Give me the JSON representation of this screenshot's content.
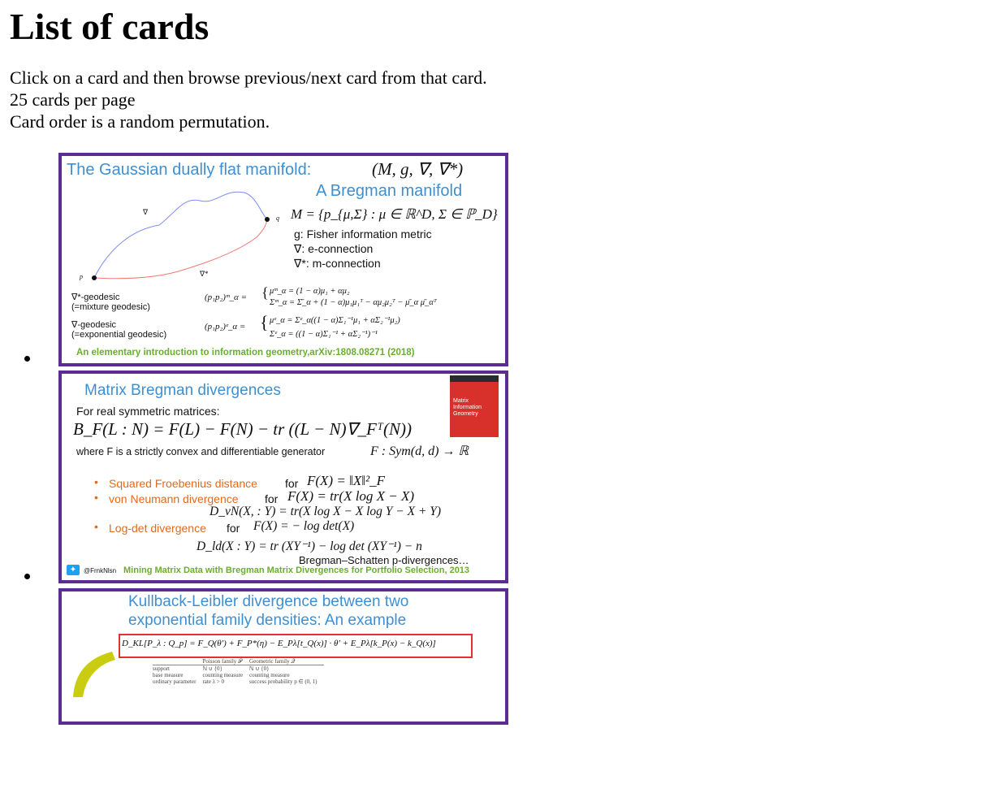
{
  "title": "List of cards",
  "intro": [
    "Click on a card and then browse previous/next card from that card.",
    "25 cards per page",
    "Card order is a random permutation."
  ],
  "cards": [
    {
      "title": "The Gaussian dually flat manifold:",
      "title_math": "(M, g, ∇, ∇*)",
      "subtitle": "A Bregman manifold",
      "manifold_def": "M = {p_{μ,Σ} : μ ∈ ℝ^D, Σ ∈ ℙ_D}",
      "items": [
        "g: Fisher information metric",
        "∇: e-connection",
        "∇*: m-connection"
      ],
      "fig_labels": {
        "nabla": "∇",
        "nabla_star": "∇*",
        "p": "p",
        "q": "q"
      },
      "geodesic_m": [
        "∇*-geodesic",
        "(=mixture geodesic)"
      ],
      "geodesic_e": [
        "∇-geodesic",
        "(=exponential geodesic)"
      ],
      "eq_m_lhs": "(p₁p₂)ᵐ_α =",
      "eq_m_1": "μᵐ_α = (1 − α)μ₁ + αμ₂",
      "eq_m_2": "Σᵐ_α = Σ̄_α + (1 − α)μ₁μ₁ᵀ − αμ₂μ₂ᵀ − μ̄_α μ̄_αᵀ",
      "eq_e_lhs": "(p₁p₂)ᵉ_α =",
      "eq_e_1": "μᵉ_α = Σᵉ_α((1 − α)Σ₁⁻¹μ₁ + αΣ₂⁻¹μ₂)",
      "eq_e_2": "Σᵉ_α = ((1 − α)Σ₁⁻¹ + αΣ₂⁻¹)⁻¹",
      "footer": "An elementary introduction to information geometry,arXiv:1808.08271 (2018)"
    },
    {
      "title": "Matrix Bregman divergences",
      "subtitle": "For real symmetric matrices:",
      "main_eq": "B_F(L : N) = F(L) − F(N) − tr ((L − N)∇_Fᵀ(N))",
      "where": "where F is  a strictly convex and differentiable generator",
      "where_math": "F : Sym(d, d) → ℝ",
      "book_text": "Matrix Information Geometry",
      "b1_name": "Squared Froebenius distance",
      "b1_for": "for",
      "b1_math": "F(X) = ‖X‖²_F",
      "b2_name": "von Neumann divergence",
      "b2_for": "for",
      "b2_math": "F(X) = tr(X log X − X)",
      "b2_eq": "D_vN(X, : Y) = tr(X log X − X log Y − X + Y)",
      "b3_name": "Log-det divergence",
      "b3_for": "for",
      "b3_math": "F(X) = − log det(X)",
      "b3_eq": "D_ld(X : Y) = tr (XY⁻¹) − log det (XY⁻¹) − n",
      "extra": "Bregman–Schatten p-divergences…",
      "handle": "@FrnkNlsn",
      "footer": "Mining Matrix Data with Bregman Matrix Divergences for Portfolio Selection, 2013"
    },
    {
      "title_1": "Kullback-Leibler divergence between two",
      "title_2": "exponential family densities: An example",
      "kl_eq": "D_KL[P_λ : Q_p]   =   F_Q(θ′) + F_P*(η) − E_Pλ[t_Q(x)] · θ′ + E_Pλ[k_P(x) − k_Q(x)]",
      "table_header": [
        "",
        "Poisson family 𝒫",
        "Geometric family 𝒬"
      ],
      "table_rows": [
        [
          "support",
          "ℕ ∪ {0}",
          "ℕ ∪ {0}"
        ],
        [
          "base measure",
          "counting measure",
          "counting measure"
        ],
        [
          "ordinary parameter",
          "rate λ > 0",
          "success probability p ∈ (0, 1)"
        ]
      ]
    }
  ],
  "colors": {
    "card_border": "#5b2d90",
    "title_blue": "#3f8fd0",
    "footer_green": "#6aae2e",
    "accent_orange": "#e26a1b",
    "box_red": "#e53030"
  }
}
